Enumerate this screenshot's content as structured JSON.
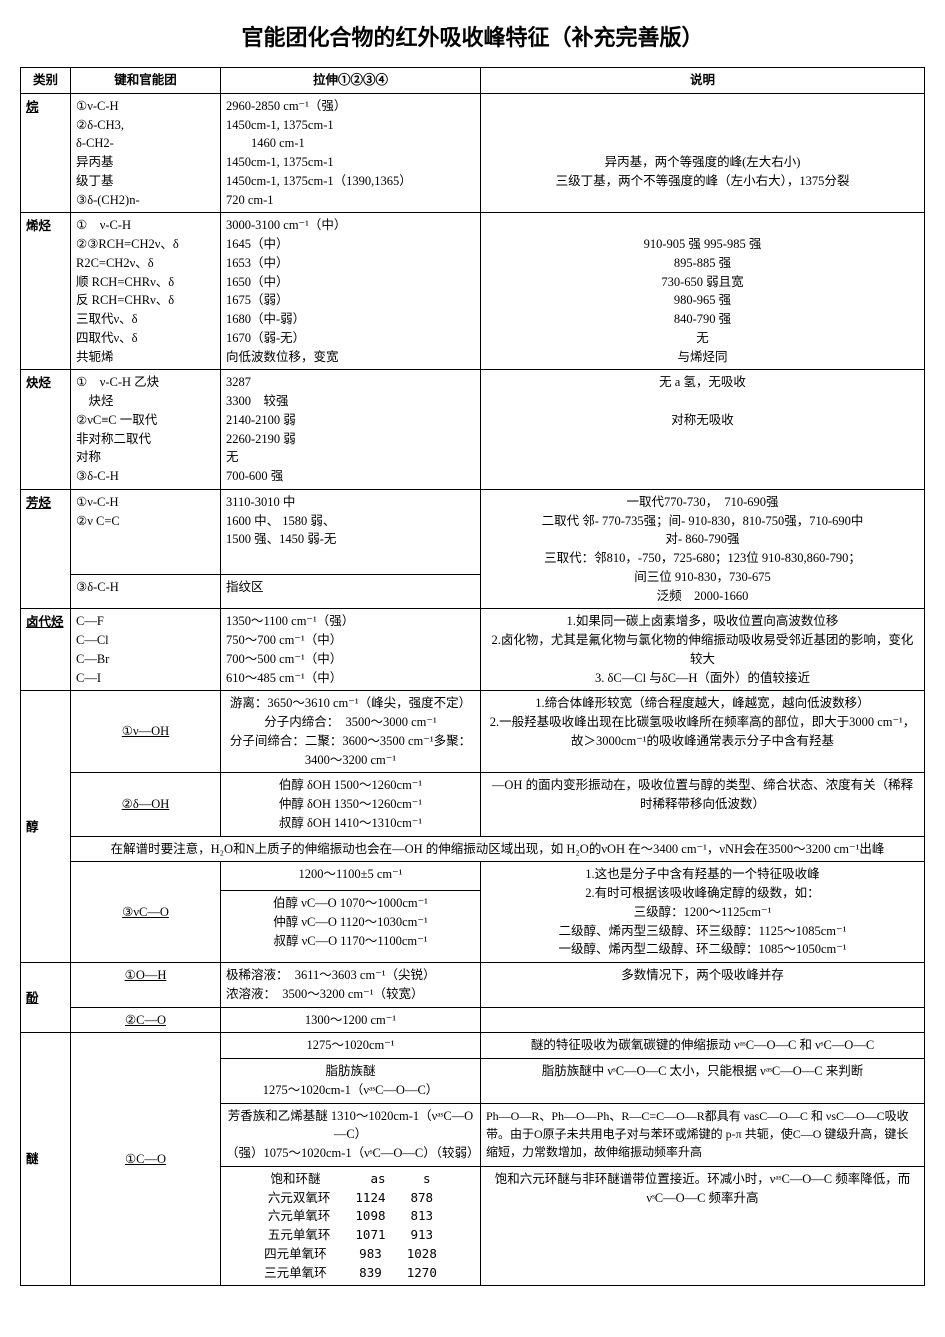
{
  "title": "官能团化合物的红外吸收峰特征（补充完善版）",
  "headers": {
    "category": "类别",
    "bond": "键和官能团",
    "stretch": "拉伸①②③④",
    "desc": "说明"
  },
  "rows": {
    "alkane": {
      "cat": "烷",
      "bond": "①ν-C-H\n②δ-CH3,\nδ-CH2-\n异丙基\n级丁基\n③δ-(CH2)n-",
      "stretch": "2960-2850 cm⁻¹（强）\n1450cm-1, 1375cm-1\n　　1460 cm-1\n1450cm-1, 1375cm-1\n1450cm-1, 1375cm-1（1390,1365）\n720 cm-1",
      "desc": "\n\n\n异丙基，两个等强度的峰(左大右小)\n三级丁基，两个不等强度的峰（左小右大），1375分裂"
    },
    "alkene": {
      "cat": "烯烃",
      "bond": "①　ν-C-H\n②③RCH=CH2ν、δ\nR2C=CH2ν、δ\n顺 RCH=CHRν、δ\n反 RCH=CHRν、δ\n三取代ν、δ\n四取代ν、δ\n共轭烯",
      "stretch": "3000-3100 cm⁻¹（中）\n1645（中）\n1653（中）\n1650（中）\n1675（弱）\n1680（中-弱）\n1670（弱-无）\n向低波数位移，变宽",
      "desc": "\n910-905 强 995-985 强\n895-885 强\n730-650 弱且宽\n980-965 强\n840-790 强\n无\n与烯烃同"
    },
    "alkyne": {
      "cat": "炔烃",
      "bond": "①　ν-C-H 乙炔\n　炔烃\n②νC≡C 一取代\n非对称二取代\n对称\n③δ-C-H",
      "stretch": "3287\n3300　较强\n2140-2100 弱\n2260-2190 弱\n无\n700-600 强",
      "desc": "无 a 氢，无吸收\n\n对称无吸收"
    },
    "aromatic": {
      "cat": "芳烃",
      "bond1": "①ν-C-H\n②ν C=C",
      "bond2": "③δ-C-H",
      "stretch1": "3110-3010 中\n1600 中、 1580 弱、\n1500 强、1450 弱-无",
      "stretch2": "指纹区",
      "desc": "一取代770-730，　710-690强\n二取代 邻- 770-735强；间- 910-830，810-750强，710-690中\n对- 860-790强\n三取代：邻810，-750，725-680；123位 910-830,860-790；\n间三位 910-830，730-675\n泛频　2000-1660"
    },
    "halide": {
      "cat": "卤代烃",
      "bond": "C—F\nC—Cl\nC—Br\nC—I",
      "stretch": "1350～1100 cm⁻¹（强）\n750～700 cm⁻¹（中）\n700～500 cm⁻¹（中）\n610～485 cm⁻¹（中）",
      "desc": "1.如果同一碳上卤素增多，吸收位置向高波数位移\n2.卤化物，尤其是氟化物与氯化物的伸缩振动吸收易受邻近基团的影响，变化较大\n3. δC—Cl 与δC—H（面外）的值较接近"
    },
    "alcohol": {
      "cat": "醇",
      "r1_bond": "①ν—OH",
      "r1_stretch": "游离：3650～3610 cm⁻¹（峰尖，强度不定）\n分子内缔合：　3500～3000 cm⁻¹\n分子间缔合：二聚：3600～3500 cm⁻¹多聚：3400～3200 cm⁻¹",
      "r1_desc": "1.缔合体峰形较宽（缔合程度越大，峰越宽，越向低波数移）\n2.一般羟基吸收峰出现在比碳氢吸收峰所在频率高的部位，即大于3000 cm⁻¹，故＞3000cm⁻¹的吸收峰通常表示分子中含有羟基",
      "r2_bond": "②δ—OH",
      "r2_stretch": "伯醇 δOH 1500～1260cm⁻¹\n仲醇 δOH 1350～1260cm⁻¹\n叔醇 δOH 1410～1310cm⁻¹",
      "r2_desc": "—OH 的面内变形振动在，吸收位置与醇的类型、缔合状态、浓度有关（稀释时稀释带移向低波数）",
      "note": "在解谱时要注意，H₂O和N上质子的伸缩振动也会在—OH 的伸缩振动区域出现，如 H₂O的νOH 在～3400 cm⁻¹，νNH会在3500～3200 cm⁻¹出峰",
      "r3_bond": "③νC—O",
      "r3_stretch_top": "1200～1100±5 cm⁻¹",
      "r3_stretch": "伯醇 νC—O 1070～1000cm⁻¹\n仲醇 νC—O 1120～1030cm⁻¹\n叔醇 νC—O 1170～1100cm⁻¹",
      "r3_desc": "1.这也是分子中含有羟基的一个特征吸收峰\n2.有时可根据该吸收峰确定醇的级数，如：\n三级醇：1200～1125cm⁻¹\n二级醇、烯丙型三级醇、环三级醇：1125～1085cm⁻¹\n一级醇、烯丙型二级醇、环二级醇：1085～1050cm⁻¹"
    },
    "phenol": {
      "cat": "酚",
      "r1_bond": "①O—H",
      "r1_stretch": "极稀溶液：　3611～3603 cm⁻¹（尖锐）\n浓溶液：　3500～3200 cm⁻¹（较宽）",
      "r1_desc": "多数情况下，两个吸收峰并存",
      "r2_bond": "②C—O",
      "r2_stretch": "1300～1200 cm⁻¹",
      "r2_desc": ""
    },
    "ether": {
      "cat": "醚",
      "bond": "①C—O",
      "r1_s": "1275～1020cm⁻¹",
      "r1_d": "醚的特征吸收为碳氧碳键的伸缩振动 νᵃˢC—O—C 和 νˢC—O—C",
      "r2_s": "脂肪族醚\n1275～1020cm-1（νᵃˢC—O—C）",
      "r2_d": "脂肪族醚中 νˢC—O—C 太小，只能根据 νᵃˢC—O—C 来判断",
      "r3_s": "芳香族和乙烯基醚 1310～1020cm-1（νᵃˢC—O—C）\n（强）1075～1020cm-1（νˢC—O—C）（较弱）",
      "r3_d": "Ph—O—R、Ph—O—Ph、R—C=C—O—R都具有 νasC—O—C 和 νsC—O—C吸收带。由于O原子未共用电子对与苯环或烯键的 p-π 共轭，使C—O 键级升高，键长缩短，力常数增加，故伸缩振动频率升高",
      "r4_s_h": "饱和环醚　　　　as　　　s\n六元双氧环　　1124　　878\n六元单氧环　　1098　　813\n五元单氧环　　1071　　913\n四元单氧环　　 983　　1028\n三元单氧环　　 839　　1270",
      "r4_d": "饱和六元环醚与非环醚谱带位置接近。环减小时，νᵃˢC—O—C 频率降低，而 νˢC—O—C 频率升高"
    }
  }
}
